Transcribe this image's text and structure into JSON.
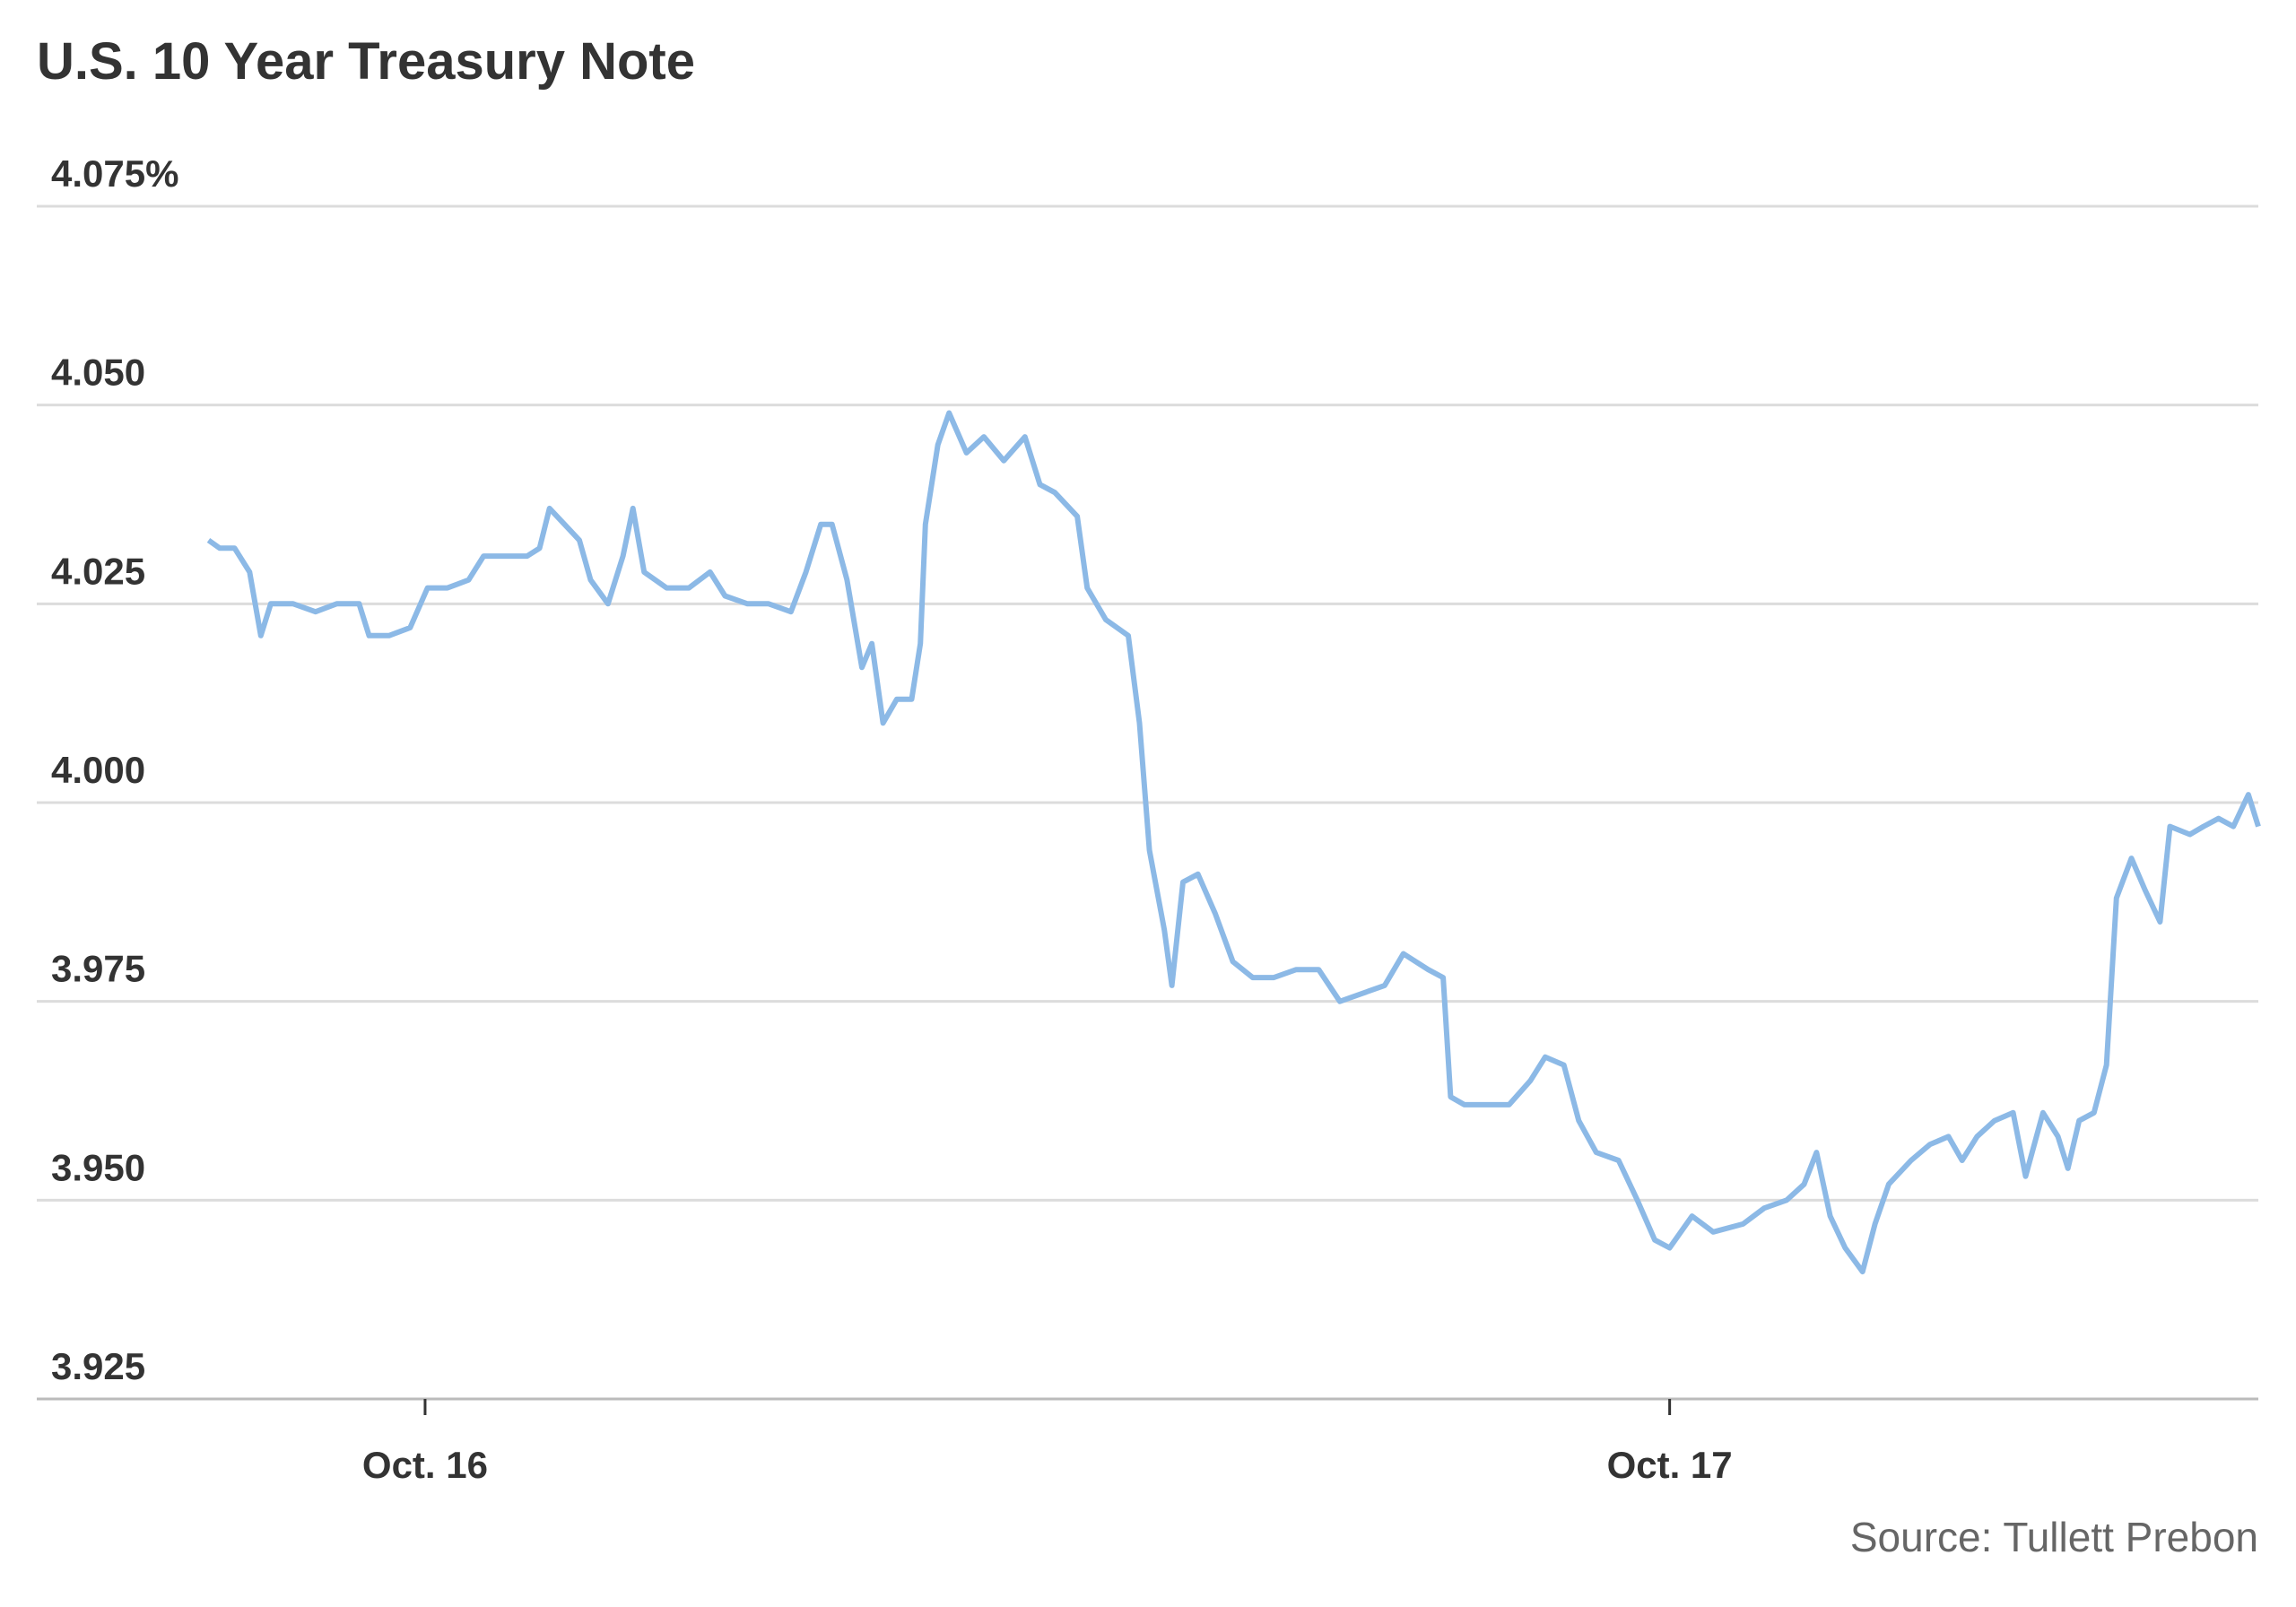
{
  "chart_data": {
    "type": "line",
    "title": "U.S. 10 Year Treasury Note",
    "source": "Source: Tullett Prebon",
    "x": [
      -0.174,
      -0.165,
      -0.153,
      -0.141,
      -0.132,
      -0.124,
      -0.106,
      -0.088,
      -0.071,
      -0.053,
      -0.045,
      -0.029,
      -0.012,
      0.002,
      0.018,
      0.035,
      0.047,
      0.065,
      0.082,
      0.092,
      0.1,
      0.112,
      0.124,
      0.133,
      0.147,
      0.159,
      0.167,
      0.176,
      0.194,
      0.212,
      0.229,
      0.241,
      0.259,
      0.276,
      0.294,
      0.306,
      0.318,
      0.327,
      0.339,
      0.351,
      0.359,
      0.368,
      0.379,
      0.391,
      0.398,
      0.402,
      0.412,
      0.421,
      0.435,
      0.449,
      0.465,
      0.482,
      0.494,
      0.506,
      0.524,
      0.532,
      0.547,
      0.565,
      0.574,
      0.582,
      0.594,
      0.6,
      0.609,
      0.621,
      0.635,
      0.649,
      0.665,
      0.682,
      0.7,
      0.718,
      0.735,
      0.753,
      0.771,
      0.786,
      0.806,
      0.818,
      0.824,
      0.835,
      0.853,
      0.871,
      0.888,
      0.9,
      0.915,
      0.927,
      0.941,
      0.959,
      0.974,
      0.988,
      1.0,
      1.018,
      1.035,
      1.059,
      1.076,
      1.094,
      1.108,
      1.118,
      1.129,
      1.141,
      1.155,
      1.165,
      1.176,
      1.194,
      1.209,
      1.224,
      1.235,
      1.247,
      1.261,
      1.276,
      1.286,
      1.3,
      1.312,
      1.32,
      1.329,
      1.341,
      1.351,
      1.359,
      1.371,
      1.382,
      1.394,
      1.402,
      1.418,
      1.429,
      1.441,
      1.453,
      1.465,
      1.473
    ],
    "series": [
      {
        "name": "U.S. 10 Year Treasury Note",
        "color": "#8cb9e6",
        "values": [
          4.033,
          4.032,
          4.032,
          4.029,
          4.021,
          4.025,
          4.025,
          4.024,
          4.025,
          4.025,
          4.021,
          4.021,
          4.022,
          4.027,
          4.027,
          4.028,
          4.031,
          4.031,
          4.031,
          4.032,
          4.037,
          4.035,
          4.033,
          4.028,
          4.025,
          4.031,
          4.037,
          4.029,
          4.027,
          4.027,
          4.029,
          4.026,
          4.025,
          4.025,
          4.024,
          4.029,
          4.035,
          4.035,
          4.028,
          4.017,
          4.02,
          4.01,
          4.013,
          4.013,
          4.02,
          4.035,
          4.045,
          4.049,
          4.044,
          4.046,
          4.043,
          4.046,
          4.04,
          4.039,
          4.036,
          4.027,
          4.023,
          4.021,
          4.01,
          3.994,
          3.984,
          3.977,
          3.99,
          3.991,
          3.986,
          3.98,
          3.978,
          3.978,
          3.979,
          3.979,
          3.975,
          3.976,
          3.977,
          3.981,
          3.979,
          3.978,
          3.963,
          3.962,
          3.962,
          3.962,
          3.965,
          3.968,
          3.967,
          3.96,
          3.956,
          3.955,
          3.95,
          3.945,
          3.944,
          3.948,
          3.946,
          3.947,
          3.949,
          3.95,
          3.952,
          3.956,
          3.948,
          3.944,
          3.941,
          3.947,
          3.952,
          3.955,
          3.957,
          3.958,
          3.955,
          3.958,
          3.96,
          3.961,
          3.953,
          3.961,
          3.958,
          3.954,
          3.96,
          3.961,
          3.967,
          3.988,
          3.993,
          3.989,
          3.985,
          3.997,
          3.996,
          3.997,
          3.998,
          3.997,
          4.001,
          3.997
        ]
      }
    ],
    "xlim": [
      -0.312,
      1.473
    ],
    "xticks": [
      {
        "value": 0,
        "label": "Oct. 16"
      },
      {
        "value": 1,
        "label": "Oct. 17"
      }
    ],
    "ylim": [
      3.925,
      4.075
    ],
    "yticks": [
      {
        "value": 3.925,
        "label": "3.925"
      },
      {
        "value": 3.95,
        "label": "3.950"
      },
      {
        "value": 3.975,
        "label": "3.975"
      },
      {
        "value": 4.0,
        "label": "4.000"
      },
      {
        "value": 4.025,
        "label": "4.025"
      },
      {
        "value": 4.05,
        "label": "4.050"
      },
      {
        "value": 4.075,
        "label": "4.075%"
      }
    ],
    "grid": true
  }
}
